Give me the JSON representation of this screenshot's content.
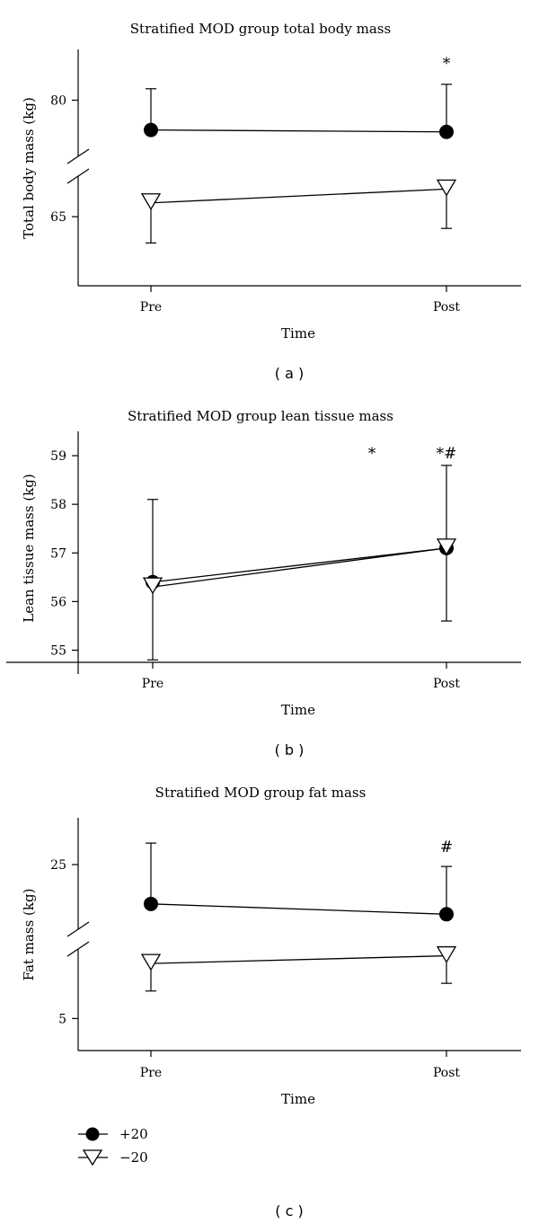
{
  "chart_data": [
    {
      "type": "line",
      "panel_label": "( a )",
      "title": "Stratified MOD group total body mass",
      "xlabel": "Time",
      "ylabel": "Total body mass (kg)",
      "categories": [
        "Pre",
        "Post"
      ],
      "y_ticks": [
        65,
        80
      ],
      "axis_break": true,
      "series": [
        {
          "name": "+20",
          "marker": "filled-circle",
          "values": [
            75.3,
            75.0
          ],
          "error_upper": [
            81.8,
            82.5
          ],
          "error_lower": [
            null,
            null
          ]
        },
        {
          "name": "−20",
          "marker": "open-triangle-down",
          "values": [
            67.0,
            69.0
          ],
          "error_upper": [
            null,
            null
          ],
          "error_lower": [
            61.2,
            63.3
          ]
        }
      ],
      "annotations": [
        {
          "category": "Post",
          "text": "*"
        }
      ]
    },
    {
      "type": "line",
      "panel_label": "( b )",
      "title": "Stratified MOD group lean tissue mass",
      "xlabel": "Time",
      "ylabel": "Lean tissue mass (kg)",
      "categories": [
        "Pre",
        "Post"
      ],
      "y_ticks": [
        55,
        56,
        57,
        58,
        59
      ],
      "ylim": [
        54.75,
        59.5
      ],
      "axis_break": false,
      "series": [
        {
          "name": "+20",
          "marker": "filled-circle",
          "values": [
            56.4,
            57.1
          ],
          "error_upper": [
            58.1,
            58.8
          ],
          "error_lower": [
            54.8,
            55.6
          ]
        },
        {
          "name": "−20",
          "marker": "open-triangle-down",
          "values": [
            56.3,
            57.1
          ],
          "error_upper": [
            null,
            null
          ],
          "error_lower": [
            null,
            null
          ]
        }
      ],
      "annotations": [
        {
          "category": "Post",
          "text": "*",
          "offset": "left"
        },
        {
          "category": "Post",
          "text": "*#"
        }
      ]
    },
    {
      "type": "line",
      "panel_label": "( c )",
      "title": "Stratified MOD group fat mass",
      "xlabel": "Time",
      "ylabel": "Fat mass (kg)",
      "categories": [
        "Pre",
        "Post"
      ],
      "y_ticks": [
        5,
        25
      ],
      "axis_break": true,
      "series": [
        {
          "name": "+20",
          "marker": "filled-circle",
          "values": [
            20.8,
            19.7
          ],
          "error_upper": [
            27.3,
            24.8
          ],
          "error_lower": [
            null,
            null
          ]
        },
        {
          "name": "−20",
          "marker": "open-triangle-down",
          "values": [
            13.6,
            14.8
          ],
          "error_upper": [
            null,
            null
          ],
          "error_lower": [
            9.3,
            10.5
          ]
        }
      ],
      "annotations": [
        {
          "category": "Post",
          "text": "#"
        }
      ]
    }
  ],
  "legend": {
    "items": [
      {
        "label": "+20",
        "marker": "filled-circle"
      },
      {
        "label": "−20",
        "marker": "open-triangle-down"
      }
    ]
  }
}
